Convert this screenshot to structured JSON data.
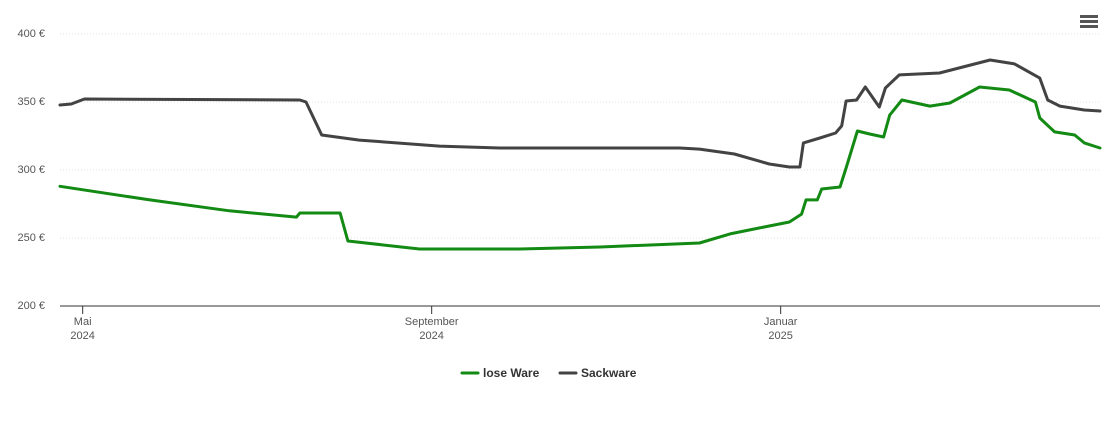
{
  "chart_data": {
    "type": "line",
    "series": [
      {
        "name": "lose Ware",
        "color": "#138a13",
        "x": [
          4.74,
          5.77,
          6.68,
          7.45,
          7.49,
          7.95,
          8.04,
          8.86,
          10.01,
          10.93,
          12.07,
          12.42,
          12.76,
          13.1,
          13.24,
          13.29,
          13.42,
          13.47,
          13.68,
          13.75,
          13.88,
          14.02,
          14.18,
          14.25,
          14.39,
          14.71,
          14.94,
          15.28,
          15.62,
          15.92,
          15.97,
          16.14,
          16.37,
          16.48,
          16.66
        ],
        "values": [
          288,
          278,
          270,
          265.4,
          268.4,
          268.4,
          247.8,
          241.9,
          241.9,
          243.4,
          246.3,
          253,
          257.4,
          261.8,
          267.6,
          278,
          278,
          286,
          287.5,
          301.5,
          328.7,
          326.5,
          324.3,
          340.4,
          351.5,
          347,
          349.3,
          361,
          358.8,
          350,
          338.2,
          328,
          325.7,
          319.9,
          316.2
        ]
      },
      {
        "name": "Sackware",
        "color": "#434343",
        "x": [
          4.74,
          4.87,
          5.02,
          7.49,
          7.56,
          7.74,
          8.17,
          9.09,
          9.78,
          11.84,
          12.07,
          12.47,
          12.87,
          13.1,
          13.22,
          13.26,
          13.45,
          13.63,
          13.7,
          13.75,
          13.87,
          13.97,
          14.13,
          14.2,
          14.36,
          14.82,
          15.4,
          15.68,
          15.97,
          16.06,
          16.2,
          16.48,
          16.66
        ],
        "values": [
          347.8,
          348.5,
          352.2,
          351.5,
          350,
          325.7,
          322,
          317.6,
          316.2,
          316.2,
          315.4,
          311.8,
          304.4,
          302.2,
          302.2,
          319.9,
          323.5,
          327.2,
          332.4,
          350.7,
          351.5,
          361,
          346.3,
          360.3,
          369.9,
          371.3,
          380.9,
          378,
          367.6,
          351.5,
          347,
          344.1,
          343.4
        ]
      }
    ],
    "xlim": [
      4.74,
      16.66
    ],
    "xticks": [
      {
        "value": 5,
        "label": "Mai\n2024"
      },
      {
        "value": 9,
        "label": "September\n2024"
      },
      {
        "value": 13,
        "label": "Januar\n2025"
      }
    ],
    "ylim": [
      200,
      400
    ],
    "yticks": [
      {
        "value": 200,
        "label": "200 €"
      },
      {
        "value": 250,
        "label": "250 €"
      },
      {
        "value": 300,
        "label": "300 €"
      },
      {
        "value": 350,
        "label": "350 €"
      },
      {
        "value": 400,
        "label": "400 €"
      }
    ],
    "grid": true
  }
}
